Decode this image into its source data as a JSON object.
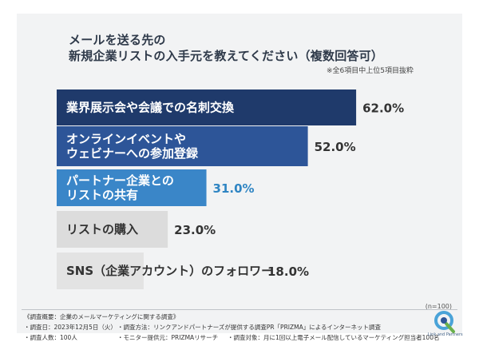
{
  "chart_data": {
    "type": "bar",
    "orientation": "horizontal",
    "title": "メールを送る先の\n新規企業リストの入手元を教えてください（複数回答可）",
    "categories": [
      "業界展示会や会議での名刺交換",
      "オンラインイベントや\nウェビナーへの参加登録",
      "パートナー企業との\nリストの共有",
      "リストの購入",
      "SNS（企業アカウント）のフォロワー"
    ],
    "values": [
      62.0,
      52.0,
      31.0,
      23.0,
      18.0
    ],
    "value_labels": [
      "62.0%",
      "52.0%",
      "31.0%",
      "23.0%",
      "18.0%"
    ],
    "bar_colors": [
      "#1f3a6b",
      "#2d5598",
      "#3a86c8",
      "#dcdcdc",
      "#e3e3e3"
    ],
    "label_colors": [
      "#ffffff",
      "#ffffff",
      "#ffffff",
      "#333333",
      "#333333"
    ],
    "value_colors": [
      "#333333",
      "#333333",
      "#2f85c3",
      "#333333",
      "#333333"
    ],
    "xlim": [
      0,
      100
    ],
    "grid": false,
    "legend": "none"
  },
  "title": {
    "line1": "メールを送る先の",
    "line2": "新規企業リストの入手元を教えてください（複数回答可）",
    "note": "※全6項目中上位5項目抜粋"
  },
  "sample": "(n=100)",
  "footer": {
    "overview": "《調査概要：企業のメールマーケティングに関する調査》",
    "date": "・調査日：2023年12月5日（火）",
    "method": "・調査方法：リンクアンドパートナーズが提供する調査PR「PRIZMA」によるインターネット調査",
    "count": "・調査人数：100人",
    "provider": "・モニター提供元：PRIZMAリサーチ",
    "target": "・調査対象：月に1回以上電子メール配信しているマーケティング担当者100名"
  },
  "logo": {
    "icon": "q-logo-icon",
    "text": "Link and Partners"
  }
}
